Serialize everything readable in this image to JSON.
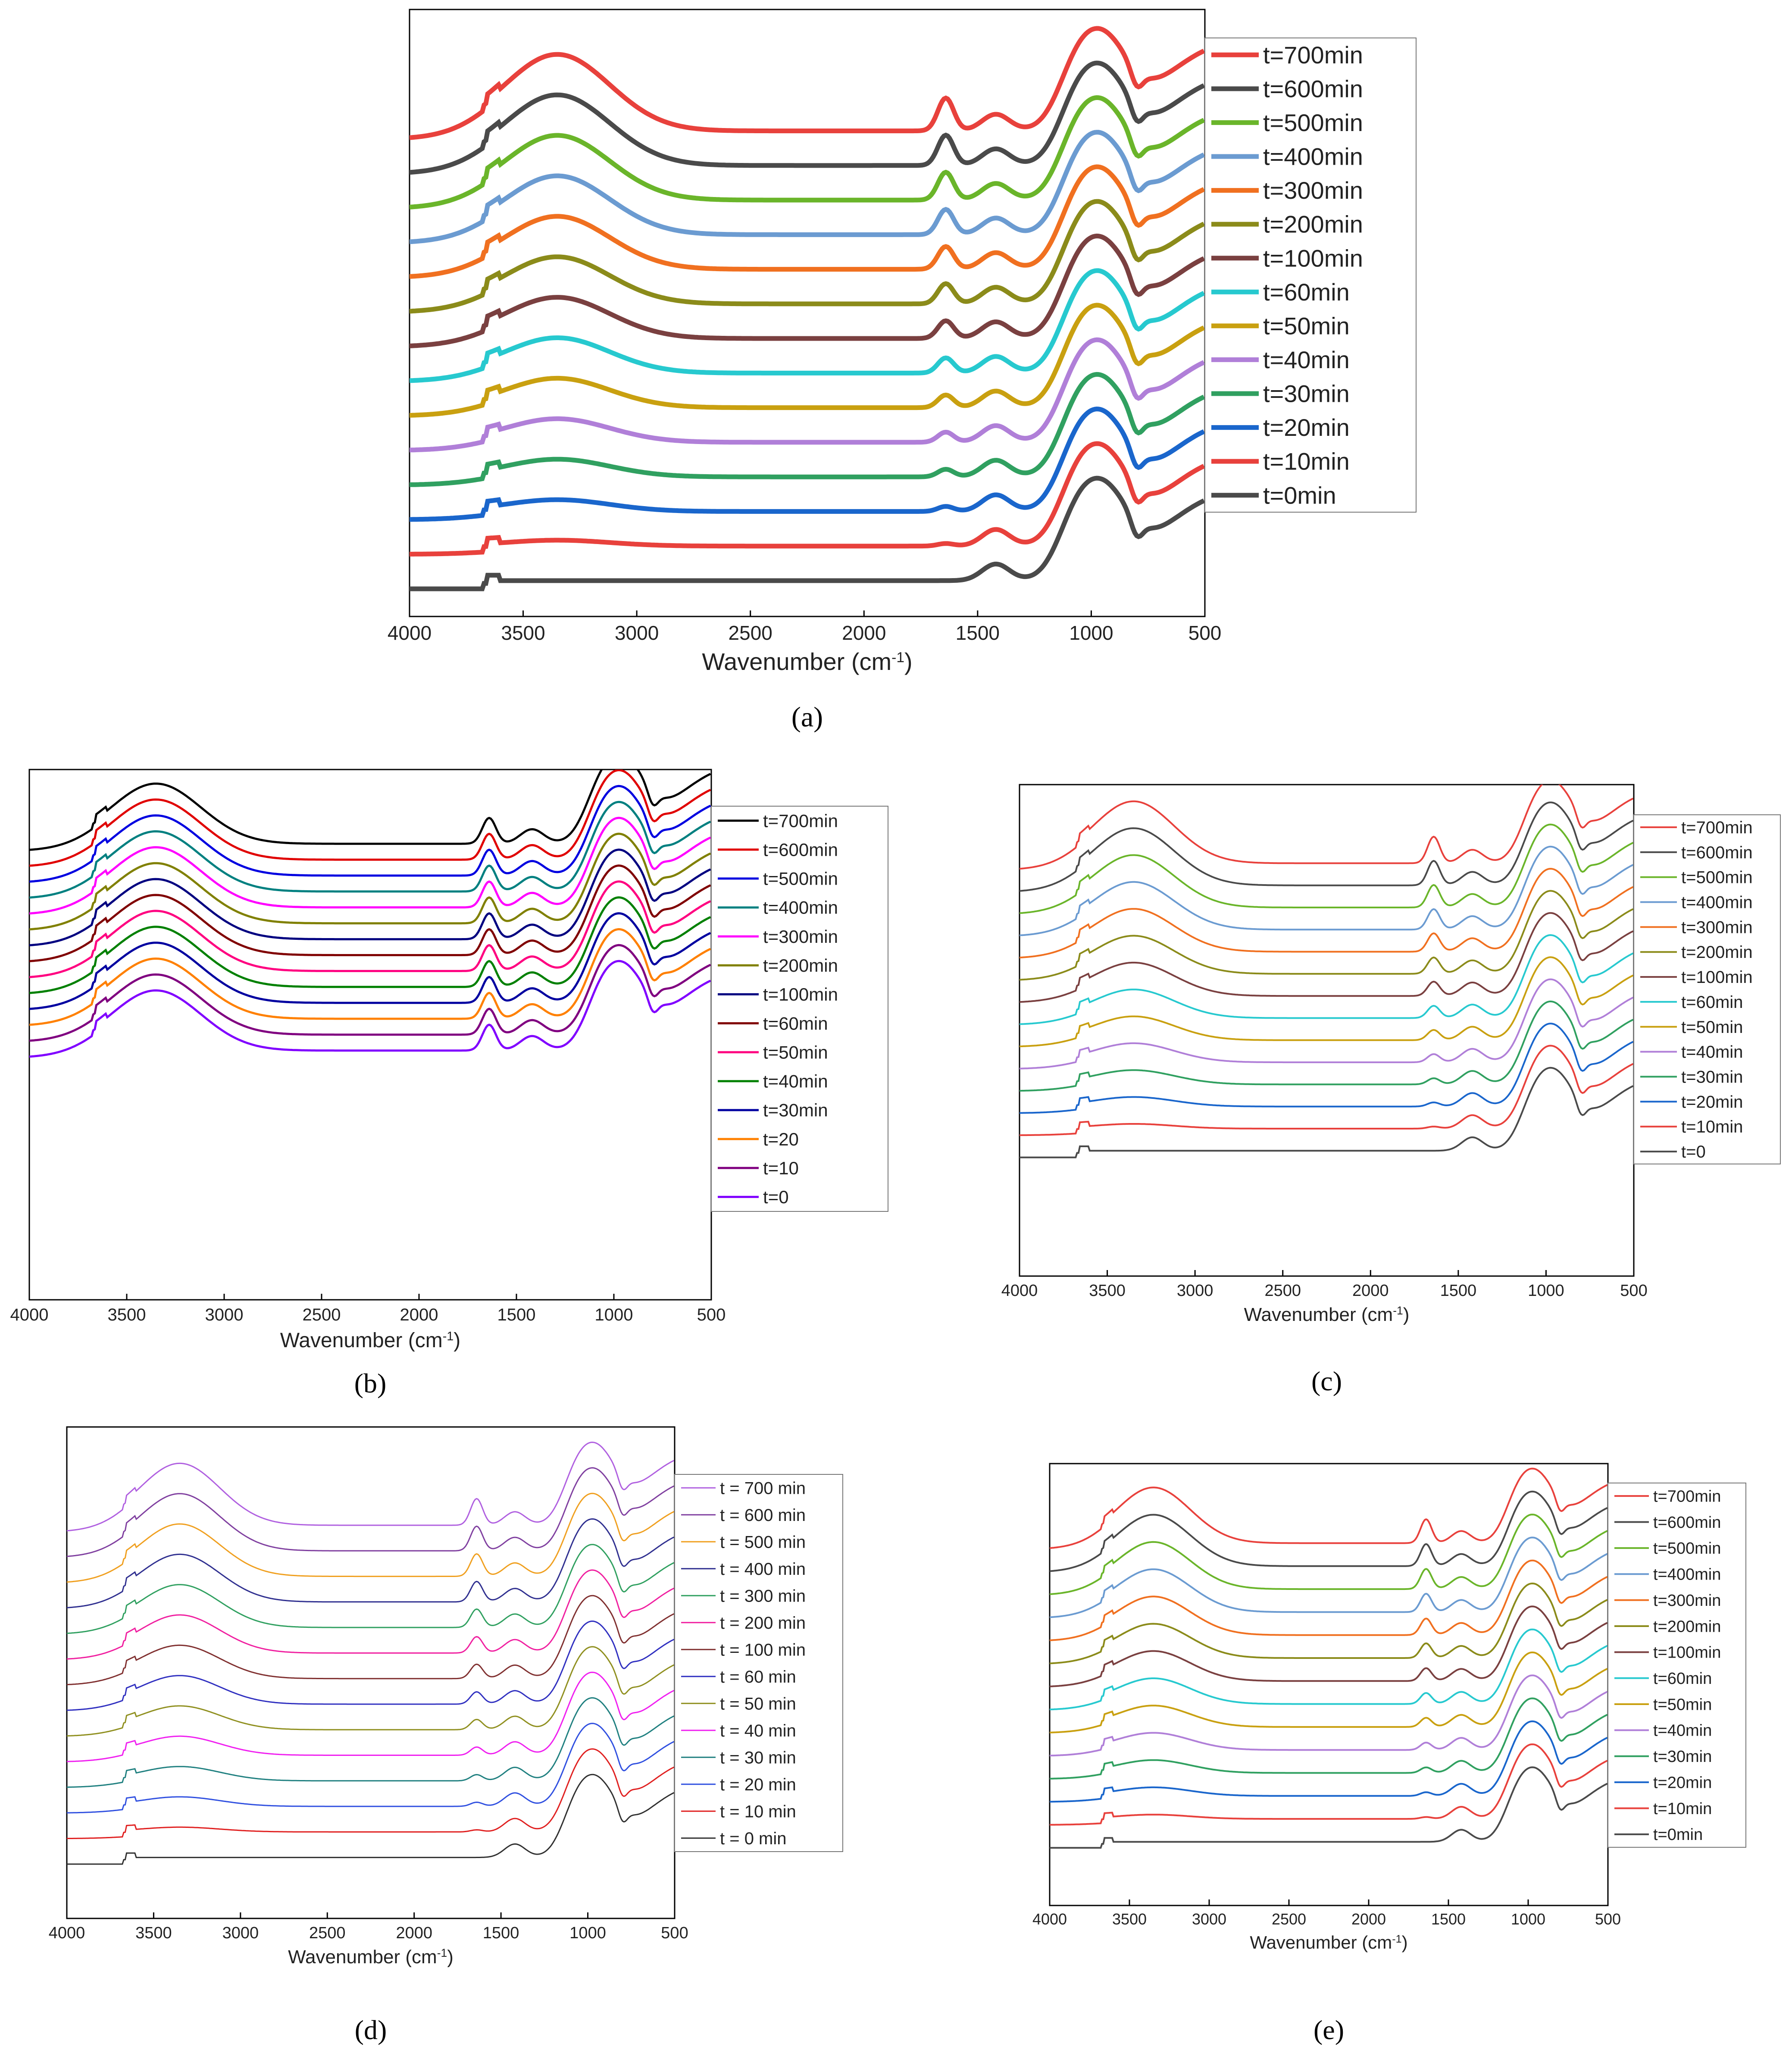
{
  "chart_data": [
    {
      "id": "a",
      "type": "line",
      "caption": "(a)",
      "xlabel": "Wavenumber (cm",
      "xlabel_sup": "-1",
      "xlabel_close": ")",
      "xlim": [
        4000,
        500
      ],
      "xticks": [
        "4000",
        "3500",
        "3000",
        "2500",
        "2000",
        "1500",
        "1000",
        "500"
      ],
      "series": [
        {
          "name": "t=700min",
          "color": "#e8413c"
        },
        {
          "name": "t=600min",
          "color": "#4a4a4a"
        },
        {
          "name": "t=500min",
          "color": "#6ab52a"
        },
        {
          "name": "t=400min",
          "color": "#6b9bd1"
        },
        {
          "name": "t=300min",
          "color": "#f07020"
        },
        {
          "name": "t=200min",
          "color": "#8b8b1a"
        },
        {
          "name": "t=100min",
          "color": "#7a4040"
        },
        {
          "name": "t=60min",
          "color": "#27c9cf"
        },
        {
          "name": "t=50min",
          "color": "#c9a010"
        },
        {
          "name": "t=40min",
          "color": "#b07fd8"
        },
        {
          "name": "t=30min",
          "color": "#30a060"
        },
        {
          "name": "t=20min",
          "color": "#1a66cc"
        },
        {
          "name": "t=10min",
          "color": "#e8413c"
        },
        {
          "name": "t=0min",
          "color": "#4a4a4a"
        }
      ]
    },
    {
      "id": "b",
      "type": "line",
      "caption": "(b)",
      "xlabel": "Wavenumber (cm",
      "xlabel_sup": "-1",
      "xlabel_close": ")",
      "xlim": [
        4000,
        500
      ],
      "xticks": [
        "4000",
        "3500",
        "3000",
        "2500",
        "2000",
        "1500",
        "1000",
        "500"
      ],
      "series": [
        {
          "name": "t=700min",
          "color": "#000000"
        },
        {
          "name": "t=600min",
          "color": "#e00000"
        },
        {
          "name": "t=500min",
          "color": "#0000e0"
        },
        {
          "name": "t=400min",
          "color": "#008080"
        },
        {
          "name": "t=300min",
          "color": "#ff00ff"
        },
        {
          "name": "t=200min",
          "color": "#808000"
        },
        {
          "name": "t=100min",
          "color": "#000080"
        },
        {
          "name": "t=60min",
          "color": "#800000"
        },
        {
          "name": "t=50min",
          "color": "#ff0080"
        },
        {
          "name": "t=40min",
          "color": "#008000"
        },
        {
          "name": "t=30min",
          "color": "#0000a0"
        },
        {
          "name": "t=20",
          "color": "#ff8000"
        },
        {
          "name": "t=10",
          "color": "#800080"
        },
        {
          "name": "t=0",
          "color": "#8000ff"
        }
      ]
    },
    {
      "id": "c",
      "type": "line",
      "caption": "(c)",
      "xlabel": "Wavenumber (cm",
      "xlabel_sup": "-1",
      "xlabel_close": ")",
      "xlim": [
        4000,
        500
      ],
      "xticks": [
        "4000",
        "3500",
        "3000",
        "2500",
        "2000",
        "1500",
        "1000",
        "500"
      ],
      "series": [
        {
          "name": "t=700min",
          "color": "#e8413c"
        },
        {
          "name": "t=600min",
          "color": "#4a4a4a"
        },
        {
          "name": "t=500min",
          "color": "#6ab52a"
        },
        {
          "name": "t=400min",
          "color": "#6b9bd1"
        },
        {
          "name": "t=300min",
          "color": "#f07020"
        },
        {
          "name": "t=200min",
          "color": "#8b8b1a"
        },
        {
          "name": "t=100min",
          "color": "#7a4040"
        },
        {
          "name": "t=60min",
          "color": "#27c9cf"
        },
        {
          "name": "t=50min",
          "color": "#c9a010"
        },
        {
          "name": "t=40min",
          "color": "#b07fd8"
        },
        {
          "name": "t=30min",
          "color": "#30a060"
        },
        {
          "name": "t=20min",
          "color": "#1a66cc"
        },
        {
          "name": "t=10min",
          "color": "#e8413c"
        },
        {
          "name": "t=0",
          "color": "#4a4a4a"
        }
      ]
    },
    {
      "id": "d",
      "type": "line",
      "caption": "(d)",
      "xlabel": "Wavenumber (cm",
      "xlabel_sup": "-1",
      "xlabel_close": ")",
      "xlim": [
        4000,
        500
      ],
      "xticks": [
        "4000",
        "3500",
        "3000",
        "2500",
        "2000",
        "1500",
        "1000",
        "500"
      ],
      "series": [
        {
          "name": "t = 700 min",
          "color": "#b060e0"
        },
        {
          "name": "t = 600 min",
          "color": "#8040a0"
        },
        {
          "name": "t = 500 min",
          "color": "#f0a020"
        },
        {
          "name": "t = 400 min",
          "color": "#303090"
        },
        {
          "name": "t = 300 min",
          "color": "#30a060"
        },
        {
          "name": "t = 200 min",
          "color": "#f020a0"
        },
        {
          "name": "t = 100 min",
          "color": "#803030"
        },
        {
          "name": "t = 60 min",
          "color": "#3030c0"
        },
        {
          "name": "t = 50 min",
          "color": "#909020"
        },
        {
          "name": "t = 40 min",
          "color": "#f020f0"
        },
        {
          "name": "t = 30 min",
          "color": "#208080"
        },
        {
          "name": "t = 20 min",
          "color": "#3050e0"
        },
        {
          "name": "t = 10 min",
          "color": "#e02020"
        },
        {
          "name": "t = 0 min",
          "color": "#303030"
        }
      ]
    },
    {
      "id": "e",
      "type": "line",
      "caption": "(e)",
      "xlabel": "Wavenumber (cm",
      "xlabel_sup": "-1",
      "xlabel_close": ")",
      "xlim": [
        4000,
        500
      ],
      "xticks": [
        "4000",
        "3500",
        "3000",
        "2500",
        "2000",
        "1500",
        "1000",
        "500"
      ],
      "series": [
        {
          "name": "t=700min",
          "color": "#e8413c"
        },
        {
          "name": "t=600min",
          "color": "#4a4a4a"
        },
        {
          "name": "t=500min",
          "color": "#6ab52a"
        },
        {
          "name": "t=400min",
          "color": "#6b9bd1"
        },
        {
          "name": "t=300min",
          "color": "#f07020"
        },
        {
          "name": "t=200min",
          "color": "#8b8b1a"
        },
        {
          "name": "t=100min",
          "color": "#7a4040"
        },
        {
          "name": "t=60min",
          "color": "#27c9cf"
        },
        {
          "name": "t=50min",
          "color": "#c9a010"
        },
        {
          "name": "t=40min",
          "color": "#b07fd8"
        },
        {
          "name": "t=30min",
          "color": "#30a060"
        },
        {
          "name": "t=20min",
          "color": "#1a66cc"
        },
        {
          "name": "t=10min",
          "color": "#e8413c"
        },
        {
          "name": "t=0min",
          "color": "#4a4a4a"
        }
      ]
    }
  ]
}
